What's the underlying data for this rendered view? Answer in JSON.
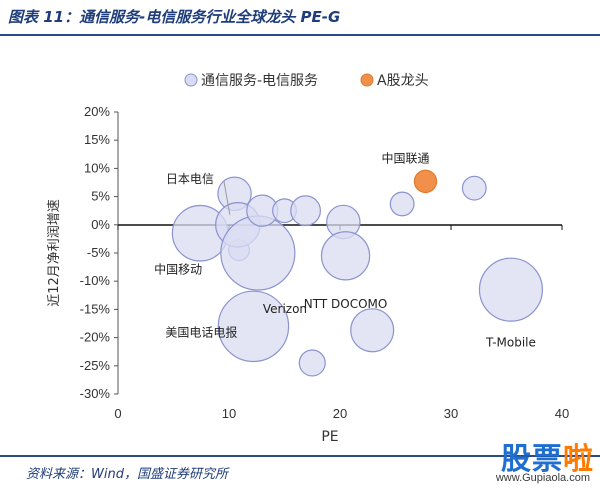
{
  "header": {
    "title": "图表 11：通信服务-电信服务行业全球龙头 PE-G"
  },
  "footer": {
    "source": "资料来源：Wind，国盛证券研究所"
  },
  "watermark": {
    "brand_main": "股票",
    "brand_highlight": "啦",
    "url": "www.Gupiaola.com"
  },
  "colors": {
    "sector_fill": "#d9dcf2",
    "sector_stroke": "#8b93cf",
    "a_share_fill": "#f0904a",
    "a_share_stroke": "#e07a30",
    "header_text": "#1f3d7a"
  },
  "chart_data": {
    "type": "scatter",
    "xlabel": "PE",
    "ylabel": "近12月净利润增速",
    "xlim": [
      0,
      40
    ],
    "ylim": [
      -0.3,
      0.2
    ],
    "x_ticks": [
      0,
      10,
      20,
      30,
      40
    ],
    "y_ticks": [
      {
        "v": 0.2,
        "label": "20%"
      },
      {
        "v": 0.15,
        "label": "15%"
      },
      {
        "v": 0.1,
        "label": "10%"
      },
      {
        "v": 0.05,
        "label": "5%"
      },
      {
        "v": 0.0,
        "label": "0%"
      },
      {
        "v": -0.05,
        "label": "-5%"
      },
      {
        "v": -0.1,
        "label": "-10%"
      },
      {
        "v": -0.15,
        "label": "-15%"
      },
      {
        "v": -0.2,
        "label": "-20%"
      },
      {
        "v": -0.25,
        "label": "-25%"
      },
      {
        "v": -0.3,
        "label": "-30%"
      }
    ],
    "legend": {
      "position": "top",
      "entries": [
        {
          "name": "通信服务-电信服务",
          "color": "#d9dcf2"
        },
        {
          "name": "A股龙头",
          "color": "#f0904a"
        }
      ]
    },
    "series": [
      {
        "name": "通信服务-电信服务",
        "points": [
          {
            "x": 10.5,
            "y": 0.055,
            "size": 0.45,
            "label": ""
          },
          {
            "x": 7.4,
            "y": -0.015,
            "size": 0.75,
            "label": "中国移动"
          },
          {
            "x": 10.9,
            "y": -0.045,
            "size": 0.28,
            "label": ""
          },
          {
            "x": 10.8,
            "y": 0.0,
            "size": 0.6,
            "label": "日本电信"
          },
          {
            "x": 12.6,
            "y": -0.05,
            "size": 1.0,
            "label": "Verizon"
          },
          {
            "x": 13.0,
            "y": 0.025,
            "size": 0.42,
            "label": ""
          },
          {
            "x": 15.0,
            "y": 0.025,
            "size": 0.32,
            "label": ""
          },
          {
            "x": 16.9,
            "y": 0.025,
            "size": 0.4,
            "label": ""
          },
          {
            "x": 20.3,
            "y": 0.005,
            "size": 0.45,
            "label": ""
          },
          {
            "x": 20.5,
            "y": -0.055,
            "size": 0.65,
            "label": "NTT DOCOMO"
          },
          {
            "x": 12.2,
            "y": -0.18,
            "size": 0.95,
            "label": "美国电话电报"
          },
          {
            "x": 17.5,
            "y": -0.245,
            "size": 0.35,
            "label": ""
          },
          {
            "x": 22.9,
            "y": -0.187,
            "size": 0.58,
            "label": ""
          },
          {
            "x": 25.6,
            "y": 0.037,
            "size": 0.32,
            "label": ""
          },
          {
            "x": 32.1,
            "y": 0.065,
            "size": 0.32,
            "label": ""
          },
          {
            "x": 35.4,
            "y": -0.115,
            "size": 0.85,
            "label": "T-Mobile"
          }
        ]
      },
      {
        "name": "A股龙头",
        "points": [
          {
            "x": 27.7,
            "y": 0.077,
            "size": 0.3,
            "label": "中国联通"
          }
        ]
      }
    ]
  }
}
